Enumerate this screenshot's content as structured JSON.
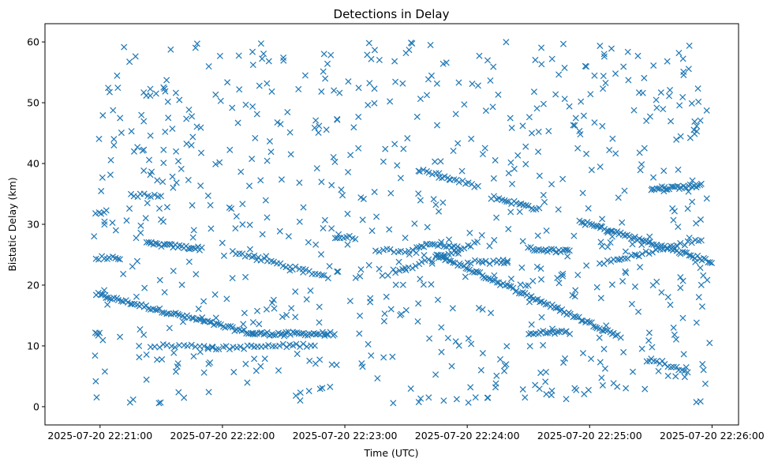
{
  "chart_data": {
    "type": "scatter",
    "title": "Detections in Delay",
    "xlabel": "Time (UTC)",
    "ylabel": "Bistatic Delay (km)",
    "marker": "x",
    "color": "#1f77b4",
    "grid": false,
    "legend": "none",
    "x_range": [
      "2025-07-20 22:20:33",
      "2025-07-20 22:26:13"
    ],
    "ylim": [
      -3,
      63
    ],
    "x_ticks": [
      "2025-07-20 22:21:00",
      "2025-07-20 22:22:00",
      "2025-07-20 22:23:00",
      "2025-07-20 22:24:00",
      "2025-07-20 22:25:00",
      "2025-07-20 22:26:00"
    ],
    "y_ticks": [
      0,
      10,
      20,
      30,
      40,
      50,
      60
    ],
    "tracks": [
      {
        "t_start": "2025-07-20 22:20:58",
        "t_end": "2025-07-20 22:22:15",
        "y_start": 18.5,
        "y_end": 12.0,
        "count": 70
      },
      {
        "t_start": "2025-07-20 22:22:15",
        "t_end": "2025-07-20 22:22:55",
        "y_start": 12.0,
        "y_end": 12.0,
        "count": 40
      },
      {
        "t_start": "2025-07-20 22:21:23",
        "t_end": "2025-07-20 22:21:50",
        "y_start": 26.8,
        "y_end": 26.0,
        "count": 28
      },
      {
        "t_start": "2025-07-20 22:22:05",
        "t_end": "2025-07-20 22:22:50",
        "y_start": 25.5,
        "y_end": 21.5,
        "count": 30
      },
      {
        "t_start": "2025-07-20 22:20:58",
        "t_end": "2025-07-20 22:21:03",
        "y_start": 32.0,
        "y_end": 32.0,
        "count": 5
      },
      {
        "t_start": "2025-07-20 22:21:15",
        "t_end": "2025-07-20 22:21:30",
        "y_start": 34.8,
        "y_end": 34.8,
        "count": 10
      },
      {
        "t_start": "2025-07-20 22:21:25",
        "t_end": "2025-07-20 22:21:55",
        "y_start": 10.0,
        "y_end": 10.0,
        "count": 16
      },
      {
        "t_start": "2025-07-20 22:21:55",
        "t_end": "2025-07-20 22:22:45",
        "y_start": 9.6,
        "y_end": 10.2,
        "count": 30
      },
      {
        "t_start": "2025-07-20 22:22:55",
        "t_end": "2025-07-20 22:23:05",
        "y_start": 27.8,
        "y_end": 27.8,
        "count": 8
      },
      {
        "t_start": "2025-07-20 22:23:15",
        "t_end": "2025-07-20 22:23:35",
        "y_start": 25.8,
        "y_end": 25.6,
        "count": 12
      },
      {
        "t_start": "2025-07-20 22:23:35",
        "t_end": "2025-07-20 22:23:55",
        "y_start": 26.5,
        "y_end": 26.5,
        "count": 16
      },
      {
        "t_start": "2025-07-20 22:23:25",
        "t_end": "2025-07-20 22:24:05",
        "y_start": 22.0,
        "y_end": 27.0,
        "count": 26
      },
      {
        "t_start": "2025-07-20 22:23:37",
        "t_end": "2025-07-20 22:24:05",
        "y_start": 38.8,
        "y_end": 36.2,
        "count": 20
      },
      {
        "t_start": "2025-07-20 22:23:45",
        "t_end": "2025-07-20 22:25:15",
        "y_start": 25.0,
        "y_end": 11.5,
        "count": 90
      },
      {
        "t_start": "2025-07-20 22:24:12",
        "t_end": "2025-07-20 22:24:35",
        "y_start": 34.5,
        "y_end": 32.5,
        "count": 20
      },
      {
        "t_start": "2025-07-20 22:24:00",
        "t_end": "2025-07-20 22:24:20",
        "y_start": 23.8,
        "y_end": 23.8,
        "count": 12
      },
      {
        "t_start": "2025-07-20 22:24:30",
        "t_end": "2025-07-20 22:24:50",
        "y_start": 26.0,
        "y_end": 25.5,
        "count": 20
      },
      {
        "t_start": "2025-07-20 22:24:30",
        "t_end": "2025-07-20 22:24:50",
        "y_start": 12.2,
        "y_end": 12.2,
        "count": 18
      },
      {
        "t_start": "2025-07-20 22:24:55",
        "t_end": "2025-07-20 22:26:00",
        "y_start": 30.5,
        "y_end": 23.8,
        "count": 65
      },
      {
        "t_start": "2025-07-20 22:25:05",
        "t_end": "2025-07-20 22:25:55",
        "y_start": 23.5,
        "y_end": 27.5,
        "count": 30
      },
      {
        "t_start": "2025-07-20 22:25:30",
        "t_end": "2025-07-20 22:25:55",
        "y_start": 35.8,
        "y_end": 36.4,
        "count": 28
      },
      {
        "t_start": "2025-07-20 22:25:30",
        "t_end": "2025-07-20 22:25:48",
        "y_start": 8.0,
        "y_end": 5.5,
        "count": 14
      },
      {
        "t_start": "2025-07-20 22:20:58",
        "t_end": "2025-07-20 22:21:10",
        "y_start": 24.5,
        "y_end": 24.5,
        "count": 10
      },
      {
        "t_start": "2025-07-20 22:20:58",
        "t_end": "2025-07-20 22:21:00",
        "y_start": 12.0,
        "y_end": 12.0,
        "count": 4
      }
    ],
    "scatter_noise": {
      "t_start": "2025-07-20 22:20:57",
      "t_end": "2025-07-20 22:25:59",
      "y_min": 0.5,
      "y_max": 60,
      "count": 720
    }
  }
}
